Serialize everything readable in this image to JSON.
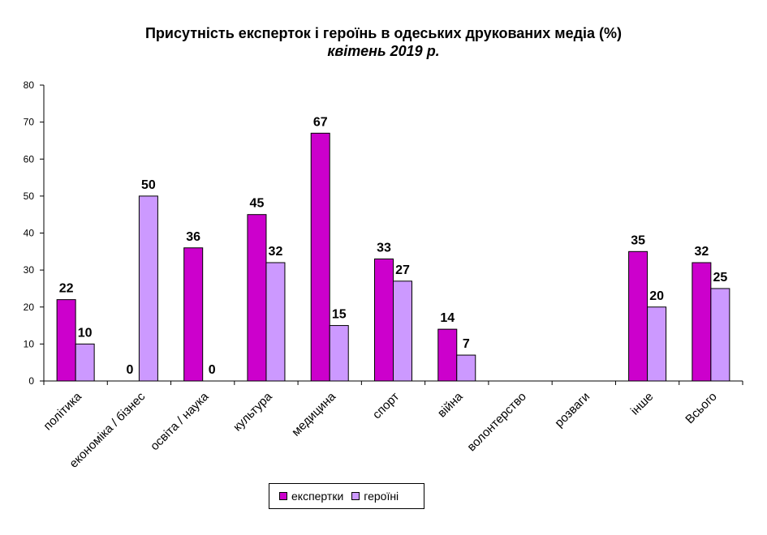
{
  "chart_data": {
    "type": "bar",
    "title": "Присутність експерток і героїнь в одеських друкованих медіа (%)",
    "subtitle": "квітень 2019 р.",
    "categories": [
      "політика",
      "економіка / бізнес",
      "освіта / наука",
      "культура",
      "медицина",
      "спорт",
      "війна",
      "волонтерство",
      "розваги",
      "інше",
      "Всього"
    ],
    "series": [
      {
        "name": "експертки",
        "color": "#cc00cc",
        "values": [
          22,
          0,
          36,
          45,
          67,
          33,
          14,
          null,
          null,
          35,
          32
        ],
        "labels": [
          "22",
          "",
          "36",
          "45",
          "67",
          "33",
          "14",
          "",
          "",
          "35",
          "32"
        ]
      },
      {
        "name": "героїні",
        "color": "#cc99ff",
        "values": [
          10,
          50,
          0,
          32,
          15,
          27,
          7,
          null,
          null,
          20,
          25
        ],
        "labels": [
          "10",
          "50",
          "0",
          "32",
          "15",
          "27",
          "7",
          "",
          "",
          "20",
          "25"
        ]
      }
    ],
    "extra_labels": [
      {
        "category_index": 1,
        "text": "0"
      }
    ],
    "ylim": [
      0,
      80
    ],
    "yticks": [
      "0",
      "10",
      "20",
      "30",
      "40",
      "50",
      "60",
      "70",
      "80"
    ],
    "legend_position": "bottom",
    "grid": false
  }
}
